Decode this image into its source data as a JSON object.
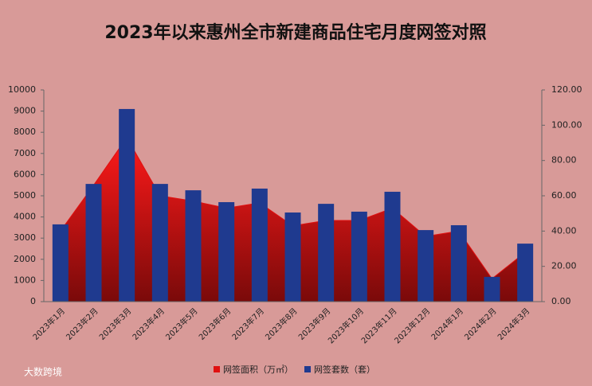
{
  "chart_data": {
    "type": "bar+area",
    "title": "2023年以来惠州全市新建商品住宅月度网签对照",
    "source": "大数跨境",
    "categories": [
      "2023年1月",
      "2023年2月",
      "2023年3月",
      "2023年4月",
      "2023年5月",
      "2023年6月",
      "2023年7月",
      "2023年8月",
      "2023年9月",
      "2023年10月",
      "2023年11月",
      "2023年12月",
      "2024年1月",
      "2024年2月",
      "2024年3月"
    ],
    "series": [
      {
        "name": "网签面积（万㎡）",
        "color": "#e01010",
        "axis": "y2",
        "kind": "area",
        "values": [
          40,
          66,
          93,
          60,
          57,
          53,
          56,
          43,
          46,
          46,
          53,
          37,
          40,
          13,
          28
        ]
      },
      {
        "name": "网签套数（套）",
        "color": "#1f3a8f",
        "axis": "y",
        "kind": "bar",
        "values": [
          3650,
          5560,
          9100,
          5560,
          5260,
          4700,
          5340,
          4210,
          4620,
          4250,
          5190,
          3380,
          3610,
          1170,
          2740
        ]
      }
    ],
    "ylim": [
      0,
      10000
    ],
    "yticks": [
      0,
      1000,
      2000,
      3000,
      4000,
      5000,
      6000,
      7000,
      8000,
      9000,
      10000
    ],
    "y2lim": [
      0,
      120
    ],
    "y2ticks": [
      {
        "value": 0,
        "label": "0.00"
      },
      {
        "value": 20,
        "label": "20.00"
      },
      {
        "value": 40,
        "label": "40.00"
      },
      {
        "value": 60,
        "label": "60.00"
      },
      {
        "value": 80,
        "label": "80.00"
      },
      {
        "value": 100,
        "label": "100.00"
      },
      {
        "value": 120,
        "label": "120.00"
      }
    ],
    "legend": "bottom"
  }
}
